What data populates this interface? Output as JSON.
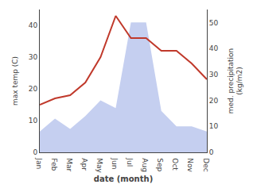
{
  "chart_data": {
    "type": "line",
    "categories": [
      "Jan",
      "Feb",
      "Mar",
      "Apr",
      "May",
      "Jun",
      "Jul",
      "Aug",
      "Sep",
      "Oct",
      "Nov",
      "Dec"
    ],
    "xlabel": "date (month)",
    "ylabel": "max temp (C)",
    "y2label": "med. precipitation\n(kg/m2)",
    "series": [
      {
        "type": "area",
        "color": "#c5cff0",
        "axis": "y2",
        "values": [
          8,
          13,
          9,
          14,
          20,
          17,
          50,
          50,
          16,
          10,
          10,
          8
        ]
      },
      {
        "type": "line",
        "color": "#c0392b",
        "values": [
          15,
          17,
          18,
          22,
          30,
          43,
          36,
          36,
          32,
          32,
          28,
          23
        ]
      }
    ],
    "ylim": [
      0,
      45
    ],
    "yticks": [
      0,
      10,
      20,
      30,
      40
    ],
    "y2lim": [
      0,
      55
    ],
    "y2ticks": [
      0,
      10,
      20,
      30,
      40,
      50
    ],
    "grid": false
  }
}
